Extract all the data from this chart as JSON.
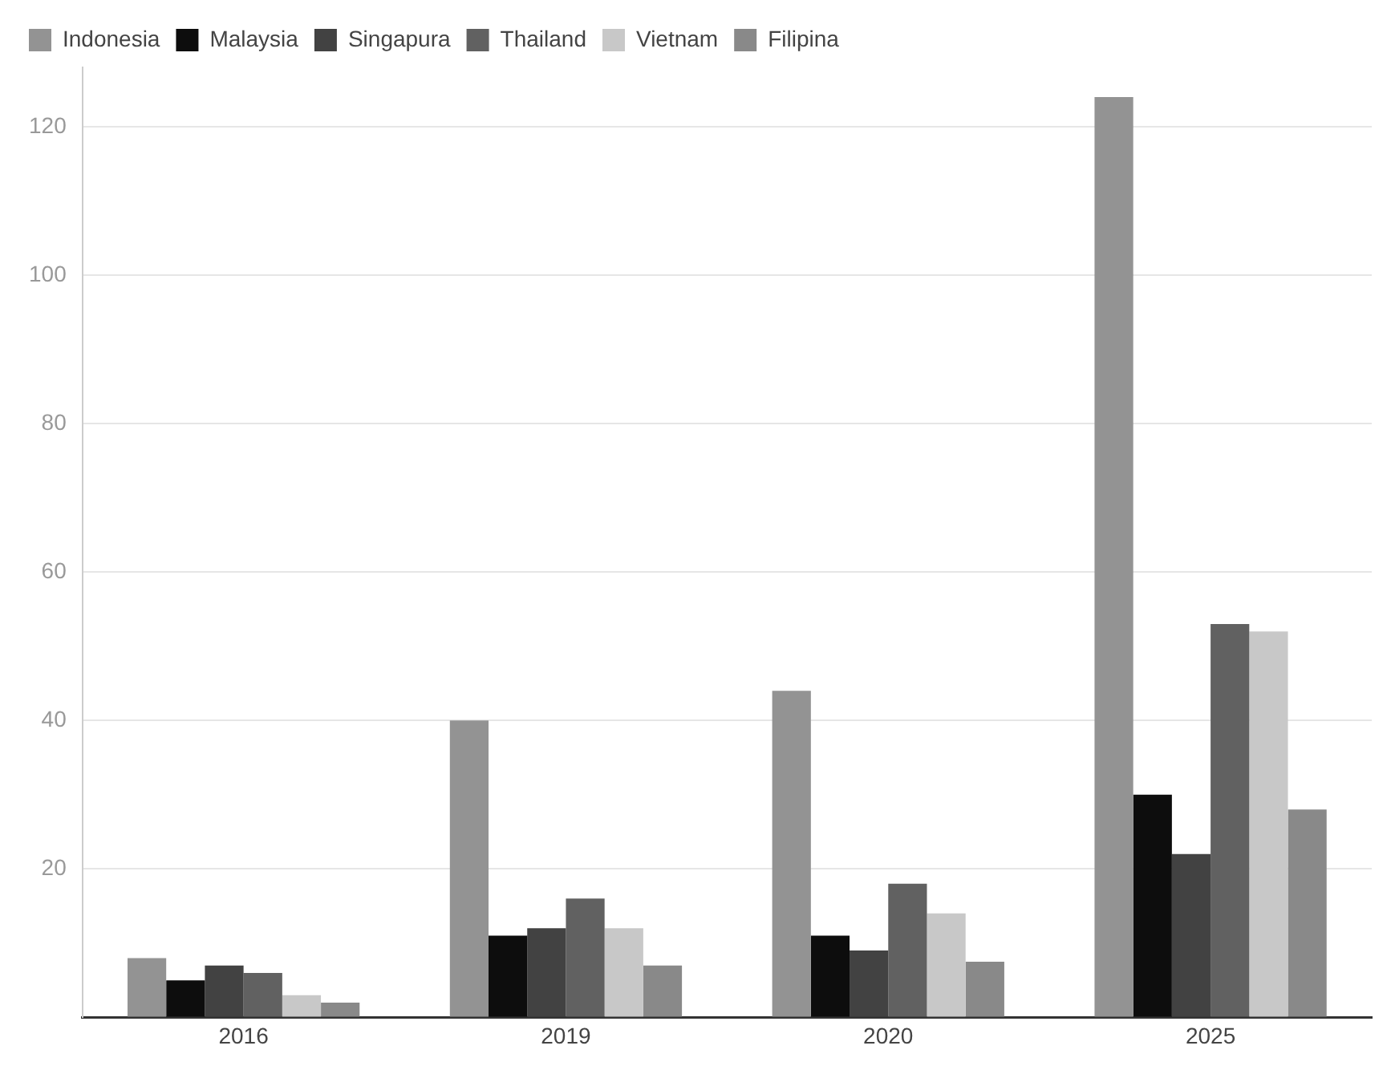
{
  "chart_data": {
    "type": "bar",
    "categories": [
      "2016",
      "2019",
      "2020",
      "2025"
    ],
    "series": [
      {
        "name": "Indonesia",
        "color": "#939393",
        "values": [
          8,
          40,
          44,
          124
        ]
      },
      {
        "name": "Malaysia",
        "color": "#0d0d0d",
        "values": [
          5,
          11,
          11,
          30
        ]
      },
      {
        "name": "Singapura",
        "color": "#424242",
        "values": [
          7,
          12,
          9,
          22
        ]
      },
      {
        "name": "Thailand",
        "color": "#616161",
        "values": [
          6,
          16,
          18,
          53
        ]
      },
      {
        "name": "Vietnam",
        "color": "#c8c8c8",
        "values": [
          3,
          12,
          14,
          52
        ]
      },
      {
        "name": "Filipina",
        "color": "#898989",
        "values": [
          2,
          7,
          7.5,
          28
        ]
      }
    ],
    "yticks": [
      {
        "value": 0,
        "label": null
      },
      20,
      40,
      60,
      80,
      100,
      120
    ],
    "ylim": [
      0,
      128
    ],
    "grid": "y",
    "legend": "top left"
  }
}
